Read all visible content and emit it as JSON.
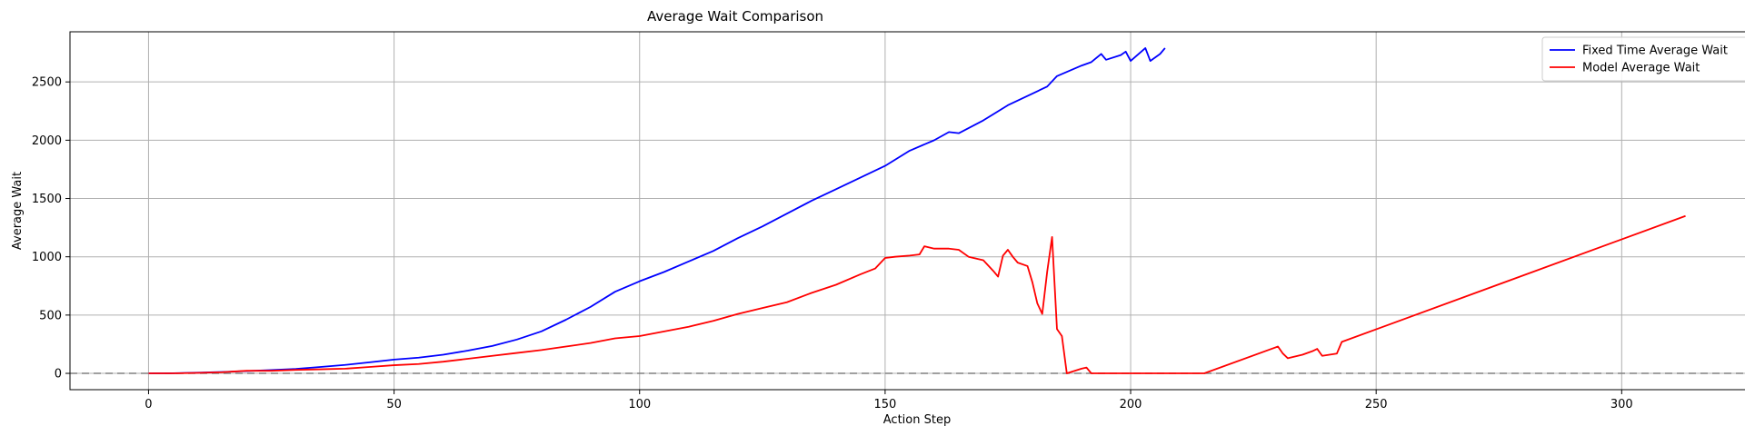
{
  "chart_data": {
    "type": "line",
    "title": "Average Wait Comparison",
    "xlabel": "Action Step",
    "ylabel": "Average Wait",
    "xlim": [
      -16,
      329
    ],
    "ylim": [
      -140,
      2930
    ],
    "xticks": [
      0,
      50,
      100,
      150,
      200,
      250,
      300
    ],
    "yticks": [
      0,
      500,
      1000,
      1500,
      2000,
      2500
    ],
    "grid": true,
    "legend_position": "top-right",
    "reference_line": {
      "y": 0,
      "style": "dashed",
      "color": "#808080"
    },
    "series": [
      {
        "name": "Fixed Time Average Wait",
        "color": "#0000ff",
        "points": [
          [
            0,
            0
          ],
          [
            5,
            1
          ],
          [
            10,
            6
          ],
          [
            15,
            12
          ],
          [
            20,
            20
          ],
          [
            25,
            28
          ],
          [
            30,
            38
          ],
          [
            35,
            55
          ],
          [
            40,
            72
          ],
          [
            45,
            95
          ],
          [
            50,
            118
          ],
          [
            55,
            135
          ],
          [
            60,
            160
          ],
          [
            65,
            195
          ],
          [
            70,
            235
          ],
          [
            75,
            290
          ],
          [
            80,
            360
          ],
          [
            85,
            460
          ],
          [
            90,
            570
          ],
          [
            95,
            700
          ],
          [
            100,
            790
          ],
          [
            105,
            870
          ],
          [
            110,
            960
          ],
          [
            115,
            1050
          ],
          [
            120,
            1160
          ],
          [
            125,
            1260
          ],
          [
            130,
            1370
          ],
          [
            135,
            1480
          ],
          [
            140,
            1580
          ],
          [
            145,
            1680
          ],
          [
            150,
            1780
          ],
          [
            155,
            1910
          ],
          [
            160,
            2000
          ],
          [
            163,
            2070
          ],
          [
            165,
            2060
          ],
          [
            170,
            2170
          ],
          [
            175,
            2300
          ],
          [
            180,
            2400
          ],
          [
            183,
            2460
          ],
          [
            185,
            2550
          ],
          [
            190,
            2640
          ],
          [
            192,
            2670
          ],
          [
            194,
            2740
          ],
          [
            195,
            2690
          ],
          [
            198,
            2730
          ],
          [
            199,
            2760
          ],
          [
            200,
            2680
          ],
          [
            203,
            2790
          ],
          [
            204,
            2680
          ],
          [
            206,
            2740
          ],
          [
            207,
            2790
          ]
        ]
      },
      {
        "name": "Model Average Wait",
        "color": "#ff0000",
        "points": [
          [
            0,
            0
          ],
          [
            5,
            0
          ],
          [
            10,
            4
          ],
          [
            15,
            10
          ],
          [
            20,
            22
          ],
          [
            25,
            22
          ],
          [
            30,
            30
          ],
          [
            35,
            35
          ],
          [
            40,
            40
          ],
          [
            45,
            55
          ],
          [
            50,
            70
          ],
          [
            55,
            80
          ],
          [
            60,
            100
          ],
          [
            65,
            125
          ],
          [
            70,
            150
          ],
          [
            75,
            175
          ],
          [
            80,
            200
          ],
          [
            85,
            230
          ],
          [
            90,
            260
          ],
          [
            95,
            300
          ],
          [
            100,
            320
          ],
          [
            105,
            360
          ],
          [
            110,
            400
          ],
          [
            115,
            450
          ],
          [
            120,
            510
          ],
          [
            125,
            560
          ],
          [
            130,
            610
          ],
          [
            135,
            690
          ],
          [
            140,
            760
          ],
          [
            145,
            850
          ],
          [
            148,
            900
          ],
          [
            150,
            990
          ],
          [
            152,
            1000
          ],
          [
            155,
            1010
          ],
          [
            157,
            1020
          ],
          [
            158,
            1090
          ],
          [
            160,
            1070
          ],
          [
            163,
            1070
          ],
          [
            165,
            1060
          ],
          [
            167,
            1000
          ],
          [
            170,
            970
          ],
          [
            172,
            880
          ],
          [
            173,
            830
          ],
          [
            174,
            1010
          ],
          [
            175,
            1060
          ],
          [
            176,
            1000
          ],
          [
            177,
            950
          ],
          [
            179,
            920
          ],
          [
            180,
            780
          ],
          [
            181,
            600
          ],
          [
            182,
            510
          ],
          [
            183,
            870
          ],
          [
            184,
            1170
          ],
          [
            185,
            380
          ],
          [
            186,
            320
          ],
          [
            187,
            0
          ],
          [
            190,
            40
          ],
          [
            191,
            50
          ],
          [
            192,
            0
          ],
          [
            200,
            0
          ],
          [
            215,
            0
          ],
          [
            230,
            230
          ],
          [
            231,
            170
          ],
          [
            232,
            130
          ],
          [
            235,
            160
          ],
          [
            237,
            190
          ],
          [
            238,
            210
          ],
          [
            239,
            150
          ],
          [
            242,
            170
          ],
          [
            243,
            270
          ],
          [
            313,
            1350
          ]
        ]
      }
    ]
  }
}
